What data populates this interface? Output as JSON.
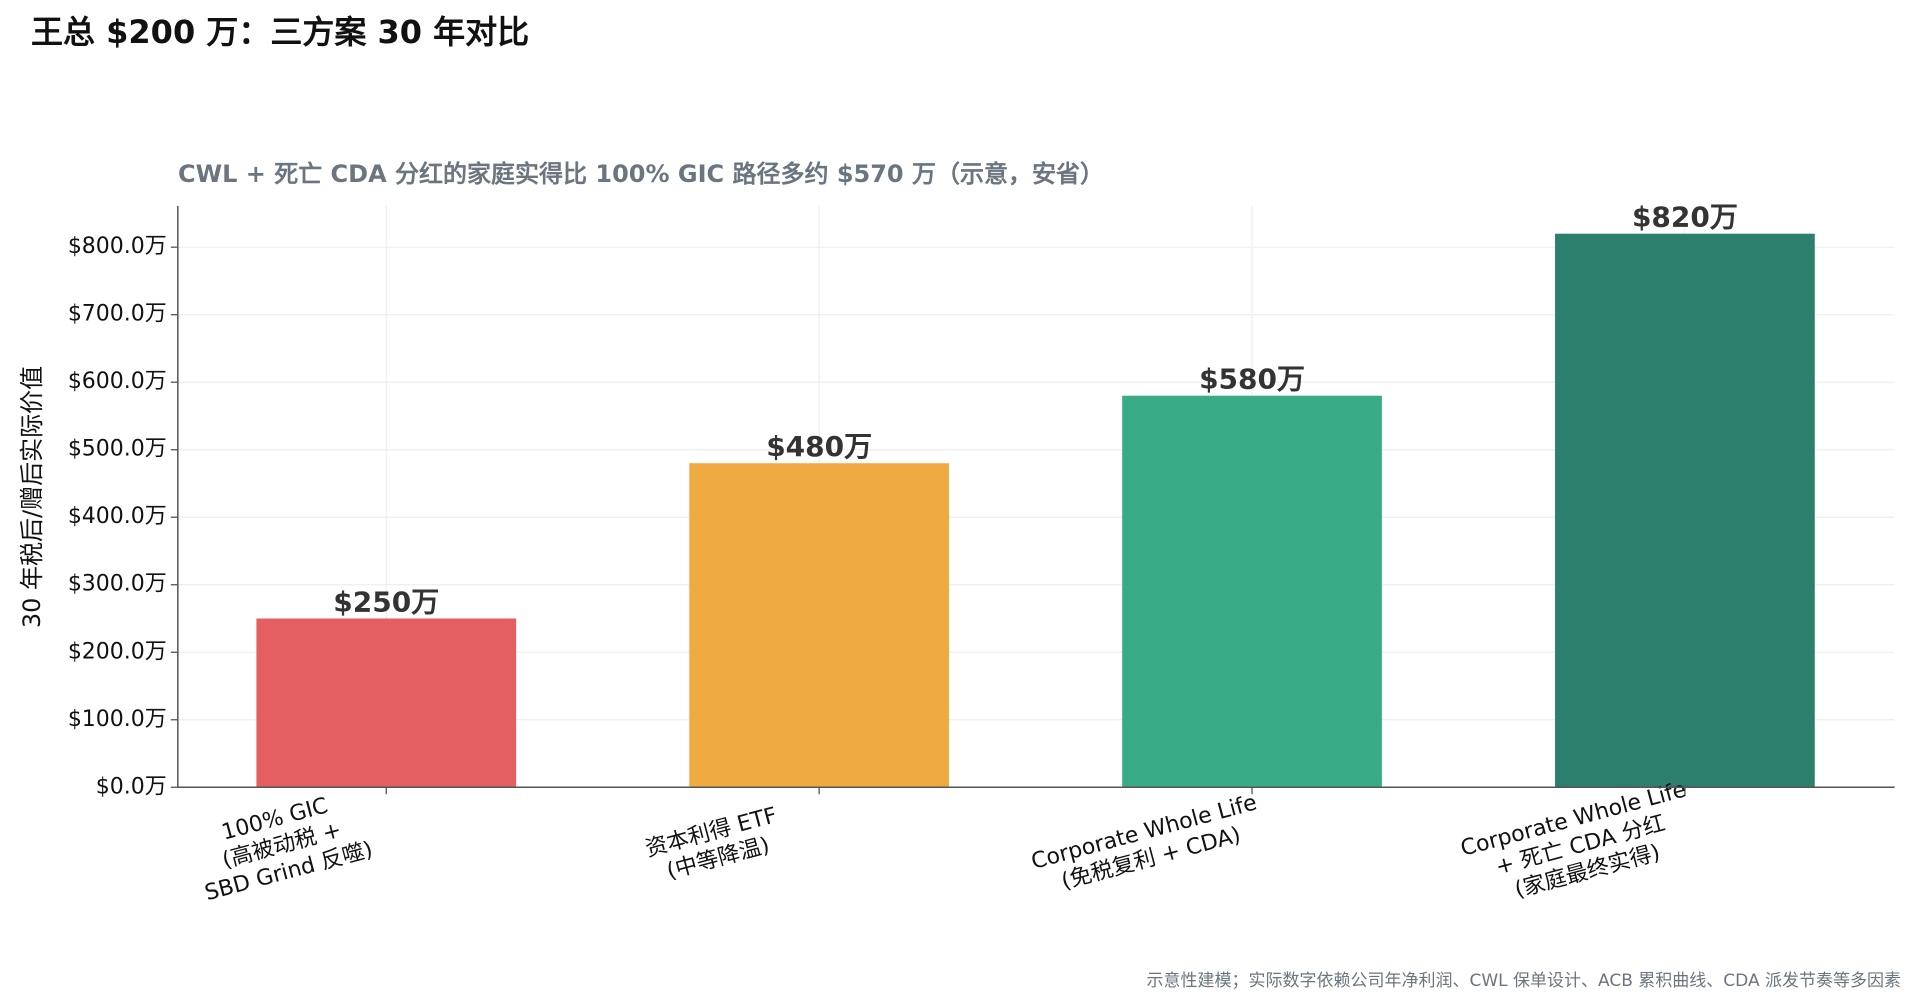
{
  "chart_data": {
    "type": "bar",
    "title": "王总 $200 万：三方案 30 年对比",
    "subtitle": "CWL + 死亡 CDA 分红的家庭实得比 100% GIC 路径多约 $570 万（示意，安省）",
    "y_label": "30 年税后/赠后实际价值",
    "note": "示意性建模；实际数字依赖公司年净利润、CWL 保单设计、ACB 累积曲线、CDA 派发节奏等多因素",
    "categories": [
      "100% GIC\n(高被动税 +\nSBD Grind 反噬)",
      "资本利得 ETF\n(中等降温)",
      "Corporate Whole Life\n(免税复利 + CDA)",
      "Corporate Whole Life\n+ 死亡 CDA 分红\n(家庭最终实得)"
    ],
    "values": [
      250,
      480,
      580,
      820
    ],
    "value_labels": [
      "$250万",
      "$480万",
      "$580万",
      "$820万"
    ],
    "colors": [
      "#e45f61",
      "#f0aa42",
      "#3aab87",
      "#2c7f6d"
    ],
    "ylim": [
      0,
      861
    ],
    "yticks": [
      {
        "value": 0,
        "label": "$0.0万"
      },
      {
        "value": 100,
        "label": "$100.0万"
      },
      {
        "value": 200,
        "label": "$200.0万"
      },
      {
        "value": 300,
        "label": "$300.0万"
      },
      {
        "value": 400,
        "label": "$400.0万"
      },
      {
        "value": 500,
        "label": "$500.0万"
      },
      {
        "value": 600,
        "label": "$600.0万"
      },
      {
        "value": 700,
        "label": "$700.0万"
      },
      {
        "value": 800,
        "label": "$800.0万"
      }
    ],
    "grid": true
  }
}
